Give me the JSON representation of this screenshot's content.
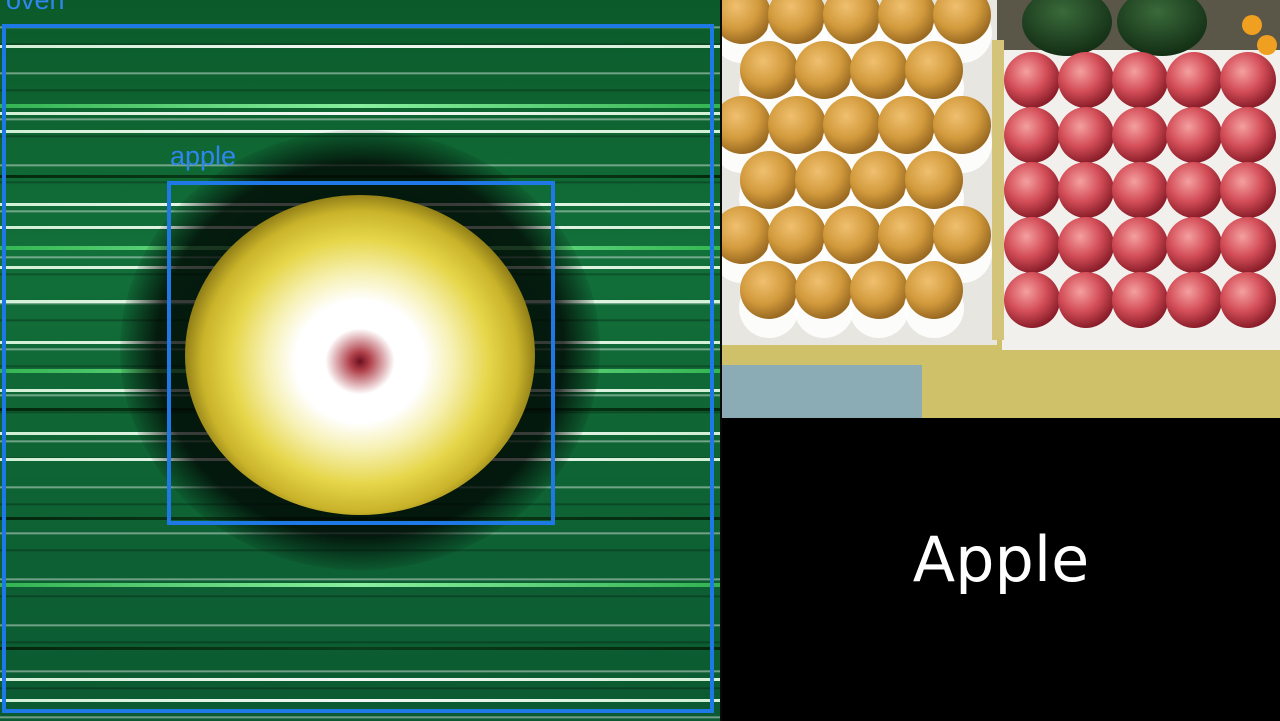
{
  "left_panel": {
    "top_label": "oven",
    "bbox_label": "apple",
    "box_color": "#1e78e6"
  },
  "right_panel": {
    "caption": "Apple"
  }
}
